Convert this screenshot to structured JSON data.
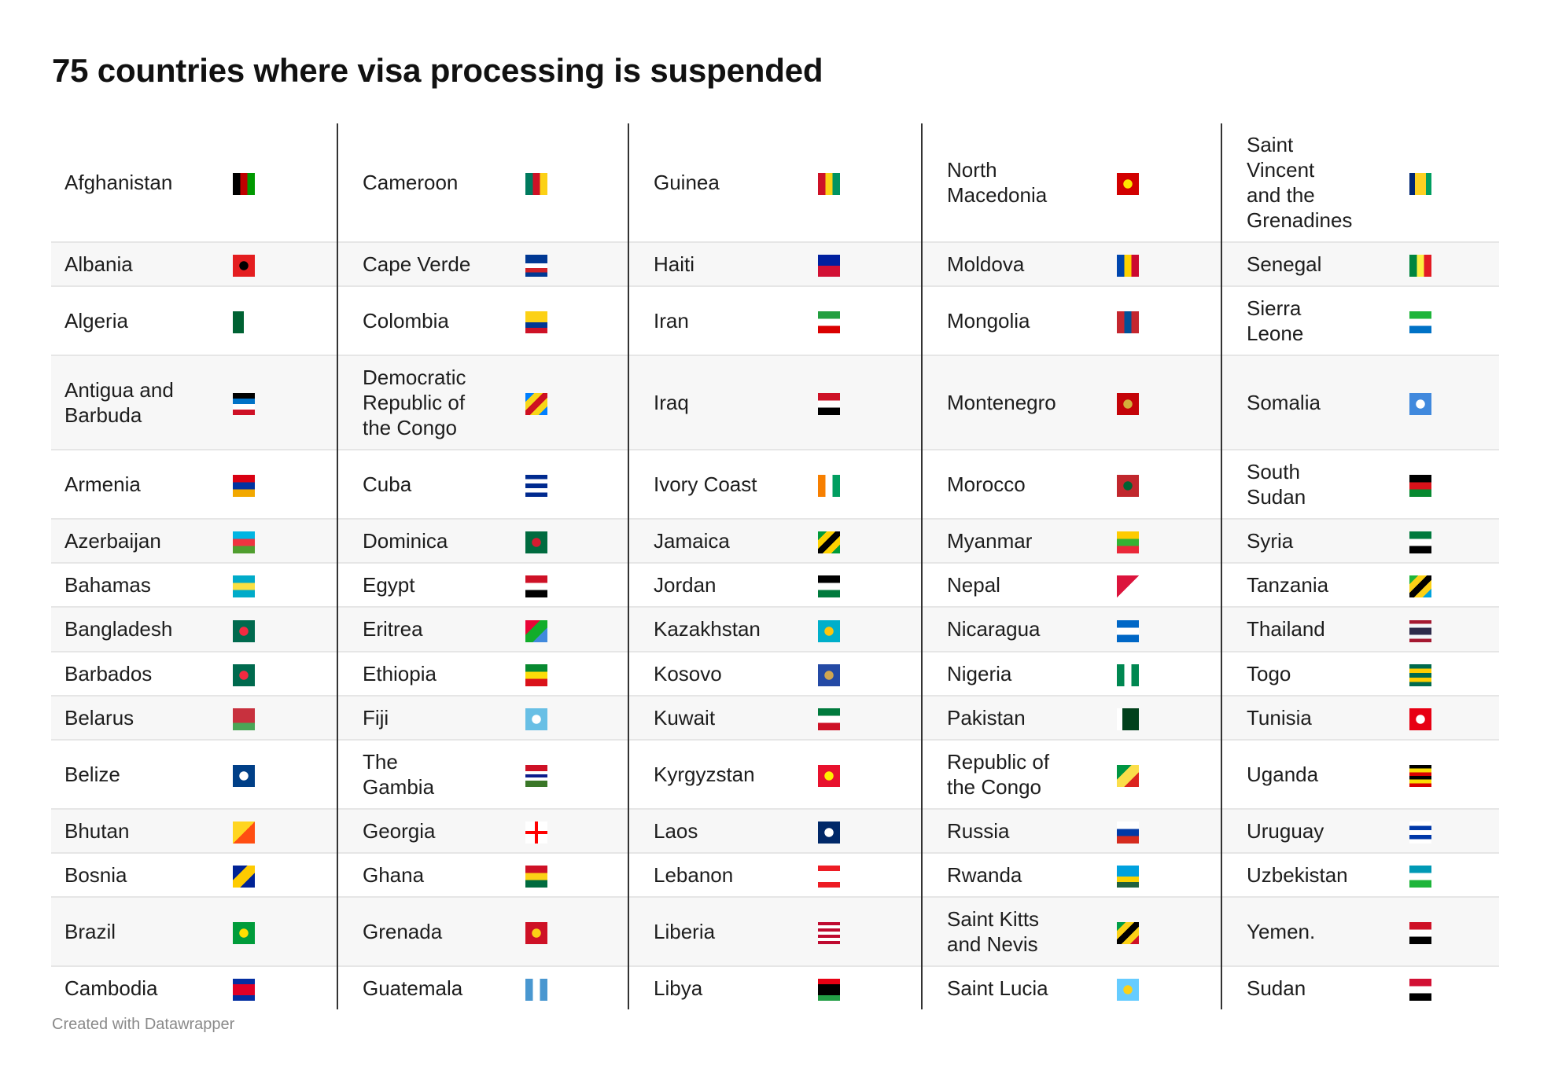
{
  "title": "75 countries where visa processing is suspended",
  "footer": "Created with Datawrapper",
  "chart_data": {
    "type": "table",
    "title": "75 countries where visa processing is suspended",
    "columns": [
      [
        {
          "name": "Afghanistan",
          "flag": {
            "k": "v",
            "c": [
              "#000000",
              "#be0000",
              "#009900"
            ]
          }
        },
        {
          "name": "Albania",
          "flag": {
            "k": "c",
            "c": [
              "#e41e20",
              "#000000"
            ]
          }
        },
        {
          "name": "Algeria",
          "flag": {
            "k": "v",
            "c": [
              "#006233",
              "#ffffff"
            ]
          }
        },
        {
          "name": "Antigua and\nBarbuda",
          "flag": {
            "k": "h",
            "c": [
              "#000000",
              "#0072c6",
              "#ffffff",
              "#ce1126"
            ]
          }
        },
        {
          "name": "Armenia",
          "flag": {
            "k": "h",
            "c": [
              "#d90012",
              "#0033a0",
              "#f2a800"
            ]
          }
        },
        {
          "name": "Azerbaijan",
          "flag": {
            "k": "h",
            "c": [
              "#00b5e2",
              "#ef3340",
              "#509e2f"
            ]
          }
        },
        {
          "name": "Bahamas",
          "flag": {
            "k": "h",
            "c": [
              "#00abc9",
              "#fae042",
              "#00abc9"
            ]
          }
        },
        {
          "name": "Bangladesh",
          "flag": {
            "k": "c",
            "c": [
              "#006a4e",
              "#f42a41"
            ]
          }
        },
        {
          "name": "Barbados",
          "flag": {
            "k": "c",
            "c": [
              "#006a4e",
              "#f42a41"
            ]
          }
        },
        {
          "name": "Belarus",
          "flag": {
            "k": "h",
            "c": [
              "#c8313e",
              "#c8313e",
              "#4aa657"
            ]
          }
        },
        {
          "name": "Belize",
          "flag": {
            "k": "c",
            "c": [
              "#003f87",
              "#ffffff"
            ]
          }
        },
        {
          "name": "Bhutan",
          "flag": {
            "k": "d",
            "c": [
              "#ffd520",
              "#ff4e12"
            ]
          }
        },
        {
          "name": "Bosnia",
          "flag": {
            "k": "d",
            "c": [
              "#002395",
              "#fecb00",
              "#002395"
            ]
          }
        },
        {
          "name": "Brazil",
          "flag": {
            "k": "c",
            "c": [
              "#009c3b",
              "#ffdf00"
            ]
          }
        },
        {
          "name": "Cambodia",
          "flag": {
            "k": "h",
            "c": [
              "#032ea1",
              "#e00025",
              "#e00025",
              "#032ea1"
            ]
          }
        }
      ],
      [
        {
          "name": "Cameroon",
          "flag": {
            "k": "v",
            "c": [
              "#007a5e",
              "#ce1126",
              "#fcd116"
            ]
          }
        },
        {
          "name": "Cape Verde",
          "flag": {
            "k": "h",
            "c": [
              "#003893",
              "#003893",
              "#ffffff",
              "#cf2027",
              "#003893"
            ]
          }
        },
        {
          "name": "Colombia",
          "flag": {
            "k": "h",
            "c": [
              "#fcd116",
              "#fcd116",
              "#003893",
              "#ce1126"
            ]
          }
        },
        {
          "name": "Democratic\nRepublic of\nthe Congo",
          "flag": {
            "k": "d",
            "c": [
              "#007fff",
              "#f7d618",
              "#ce1021",
              "#f7d618",
              "#007fff"
            ]
          }
        },
        {
          "name": "Cuba",
          "flag": {
            "k": "h",
            "c": [
              "#002a8f",
              "#ffffff",
              "#002a8f",
              "#ffffff",
              "#002a8f"
            ]
          }
        },
        {
          "name": "Dominica",
          "flag": {
            "k": "c",
            "c": [
              "#006b3f",
              "#d41c30"
            ]
          }
        },
        {
          "name": "Egypt",
          "flag": {
            "k": "h",
            "c": [
              "#ce1126",
              "#ffffff",
              "#000000"
            ]
          }
        },
        {
          "name": "Eritrea",
          "flag": {
            "k": "d",
            "c": [
              "#ea0437",
              "#12ad2b",
              "#4189dd"
            ]
          }
        },
        {
          "name": "Ethiopia",
          "flag": {
            "k": "h",
            "c": [
              "#078930",
              "#fcdd09",
              "#da121a"
            ]
          }
        },
        {
          "name": "Fiji",
          "flag": {
            "k": "c",
            "c": [
              "#68bfe5",
              "#ffffff"
            ]
          }
        },
        {
          "name": "The\nGambia",
          "flag": {
            "k": "h",
            "c": [
              "#ce1126",
              "#ce1126",
              "#ffffff",
              "#0c1c8c",
              "#ffffff",
              "#3a7728",
              "#3a7728"
            ]
          }
        },
        {
          "name": "Georgia",
          "flag": {
            "k": "x",
            "c": [
              "#ffffff",
              "#ff0000"
            ]
          }
        },
        {
          "name": "Ghana",
          "flag": {
            "k": "h",
            "c": [
              "#ce1126",
              "#fcd116",
              "#006b3f"
            ]
          }
        },
        {
          "name": "Grenada",
          "flag": {
            "k": "c",
            "c": [
              "#ce1126",
              "#fcd116"
            ]
          }
        },
        {
          "name": "Guatemala",
          "flag": {
            "k": "v",
            "c": [
              "#4997d0",
              "#ffffff",
              "#4997d0"
            ]
          }
        }
      ],
      [
        {
          "name": "Guinea",
          "flag": {
            "k": "v",
            "c": [
              "#ce1126",
              "#fcd116",
              "#009460"
            ]
          }
        },
        {
          "name": "Haiti",
          "flag": {
            "k": "h",
            "c": [
              "#00209f",
              "#d21034"
            ]
          }
        },
        {
          "name": "Iran",
          "flag": {
            "k": "h",
            "c": [
              "#239f40",
              "#ffffff",
              "#da0000"
            ]
          }
        },
        {
          "name": "Iraq",
          "flag": {
            "k": "h",
            "c": [
              "#ce1126",
              "#ffffff",
              "#000000"
            ]
          }
        },
        {
          "name": "Ivory Coast",
          "flag": {
            "k": "v",
            "c": [
              "#f77f00",
              "#ffffff",
              "#009e60"
            ]
          }
        },
        {
          "name": "Jamaica",
          "flag": {
            "k": "d",
            "c": [
              "#009b3a",
              "#fed100",
              "#000000",
              "#fed100",
              "#009b3a"
            ]
          }
        },
        {
          "name": "Jordan",
          "flag": {
            "k": "h",
            "c": [
              "#000000",
              "#ffffff",
              "#007a3d"
            ]
          }
        },
        {
          "name": "Kazakhstan",
          "flag": {
            "k": "c",
            "c": [
              "#00afca",
              "#fec50c"
            ]
          }
        },
        {
          "name": "Kosovo",
          "flag": {
            "k": "c",
            "c": [
              "#244aa5",
              "#d0a650"
            ]
          }
        },
        {
          "name": "Kuwait",
          "flag": {
            "k": "h",
            "c": [
              "#007a3d",
              "#ffffff",
              "#ce1126"
            ]
          }
        },
        {
          "name": "Kyrgyzstan",
          "flag": {
            "k": "c",
            "c": [
              "#e8112d",
              "#ffef00"
            ]
          }
        },
        {
          "name": "Laos",
          "flag": {
            "k": "c",
            "c": [
              "#002868",
              "#ffffff"
            ]
          }
        },
        {
          "name": "Lebanon",
          "flag": {
            "k": "h",
            "c": [
              "#ed1c24",
              "#ffffff",
              "#ffffff",
              "#ed1c24"
            ]
          }
        },
        {
          "name": "Liberia",
          "flag": {
            "k": "h",
            "c": [
              "#bf0a30",
              "#ffffff",
              "#bf0a30",
              "#ffffff",
              "#bf0a30",
              "#ffffff",
              "#bf0a30"
            ]
          }
        },
        {
          "name": "Libya",
          "flag": {
            "k": "h",
            "c": [
              "#e70013",
              "#000000",
              "#000000",
              "#239e46"
            ]
          }
        }
      ],
      [
        {
          "name": "North\nMacedonia",
          "flag": {
            "k": "c",
            "c": [
              "#d20000",
              "#ffe600"
            ]
          }
        },
        {
          "name": "Moldova",
          "flag": {
            "k": "v",
            "c": [
              "#0046ae",
              "#ffd200",
              "#cc092f"
            ]
          }
        },
        {
          "name": "Mongolia",
          "flag": {
            "k": "v",
            "c": [
              "#c4272f",
              "#015197",
              "#c4272f"
            ]
          }
        },
        {
          "name": "Montenegro",
          "flag": {
            "k": "c",
            "c": [
              "#c40308",
              "#d4af3a"
            ]
          }
        },
        {
          "name": "Morocco",
          "flag": {
            "k": "c",
            "c": [
              "#c1272d",
              "#006233"
            ]
          }
        },
        {
          "name": "Myanmar",
          "flag": {
            "k": "h",
            "c": [
              "#fecb00",
              "#34b233",
              "#ea2839"
            ]
          }
        },
        {
          "name": "Nepal",
          "flag": {
            "k": "d",
            "c": [
              "#dc143c",
              "#ffffff"
            ]
          }
        },
        {
          "name": "Nicaragua",
          "flag": {
            "k": "h",
            "c": [
              "#0067c6",
              "#ffffff",
              "#0067c6"
            ]
          }
        },
        {
          "name": "Nigeria",
          "flag": {
            "k": "v",
            "c": [
              "#008751",
              "#ffffff",
              "#008751"
            ]
          }
        },
        {
          "name": "Pakistan",
          "flag": {
            "k": "v",
            "c": [
              "#ffffff",
              "#01411c",
              "#01411c",
              "#01411c"
            ]
          }
        },
        {
          "name": "Republic of\nthe Congo",
          "flag": {
            "k": "d",
            "c": [
              "#009543",
              "#fbde4a",
              "#dc241f"
            ]
          }
        },
        {
          "name": "Russia",
          "flag": {
            "k": "h",
            "c": [
              "#ffffff",
              "#0039a6",
              "#d52b1e"
            ]
          }
        },
        {
          "name": "Rwanda",
          "flag": {
            "k": "h",
            "c": [
              "#00a1de",
              "#00a1de",
              "#fad201",
              "#20603d"
            ]
          }
        },
        {
          "name": "Saint Kitts\nand Nevis",
          "flag": {
            "k": "d",
            "c": [
              "#009e49",
              "#fcd116",
              "#000000",
              "#fcd116",
              "#ce1126"
            ]
          }
        },
        {
          "name": "Saint Lucia",
          "flag": {
            "k": "c",
            "c": [
              "#66ccff",
              "#fcd116"
            ]
          }
        }
      ],
      [
        {
          "name": "Saint\nVincent\nand the\nGrenadines",
          "flag": {
            "k": "v",
            "c": [
              "#002674",
              "#fcd022",
              "#fcd022",
              "#009e60"
            ]
          }
        },
        {
          "name": "Senegal",
          "flag": {
            "k": "v",
            "c": [
              "#00853f",
              "#fdef42",
              "#e31b23"
            ]
          }
        },
        {
          "name": "Sierra\nLeone",
          "flag": {
            "k": "h",
            "c": [
              "#1eb53a",
              "#ffffff",
              "#0072c6"
            ]
          }
        },
        {
          "name": "Somalia",
          "flag": {
            "k": "c",
            "c": [
              "#4189dd",
              "#ffffff"
            ]
          }
        },
        {
          "name": "South\nSudan",
          "flag": {
            "k": "h",
            "c": [
              "#000000",
              "#da121a",
              "#078930"
            ]
          }
        },
        {
          "name": "Syria",
          "flag": {
            "k": "h",
            "c": [
              "#007a3d",
              "#ffffff",
              "#000000"
            ]
          }
        },
        {
          "name": "Tanzania",
          "flag": {
            "k": "d",
            "c": [
              "#1eb53a",
              "#fcd116",
              "#000000",
              "#fcd116",
              "#00a3dd"
            ]
          }
        },
        {
          "name": "Thailand",
          "flag": {
            "k": "h",
            "c": [
              "#a51931",
              "#f4f5f8",
              "#2d2a4a",
              "#2d2a4a",
              "#f4f5f8",
              "#a51931"
            ]
          }
        },
        {
          "name": "Togo",
          "flag": {
            "k": "h",
            "c": [
              "#006a4e",
              "#ffce00",
              "#006a4e",
              "#ffce00",
              "#006a4e"
            ]
          }
        },
        {
          "name": "Tunisia",
          "flag": {
            "k": "c",
            "c": [
              "#e70013",
              "#ffffff"
            ]
          }
        },
        {
          "name": "Uganda",
          "flag": {
            "k": "h",
            "c": [
              "#000000",
              "#fcdc04",
              "#d90000",
              "#000000",
              "#fcdc04",
              "#d90000"
            ]
          }
        },
        {
          "name": "Uruguay",
          "flag": {
            "k": "h",
            "c": [
              "#ffffff",
              "#0038a8",
              "#ffffff",
              "#0038a8",
              "#ffffff"
            ]
          }
        },
        {
          "name": "Uzbekistan",
          "flag": {
            "k": "h",
            "c": [
              "#0099b5",
              "#ffffff",
              "#1eb53a"
            ]
          }
        },
        {
          "name": "Yemen.",
          "flag": {
            "k": "h",
            "c": [
              "#ce1126",
              "#ffffff",
              "#000000"
            ]
          }
        },
        {
          "name": "Sudan",
          "flag": {
            "k": "h",
            "c": [
              "#d21034",
              "#ffffff",
              "#000000"
            ]
          }
        }
      ]
    ]
  }
}
